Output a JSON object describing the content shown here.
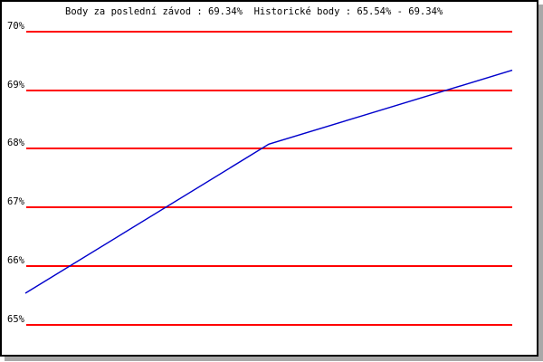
{
  "chart_data": {
    "type": "line",
    "title": "Body za poslední závod : 69.34%  Historické body : 65.54% - 69.34%",
    "last_race_points": "69.34%",
    "historical_range_min": "65.54%",
    "historical_range_max": "69.34%",
    "y_tick_labels": [
      "70%",
      "69%",
      "68%",
      "67%",
      "66%",
      "65%"
    ],
    "y_tick_values": [
      70,
      69,
      68,
      67,
      66,
      65
    ],
    "x_tick_labels": [],
    "num_points": 3,
    "series": [
      {
        "values": [
          65.54,
          68.08,
          69.34
        ],
        "color": "#0000cc"
      }
    ],
    "ylim": [
      64.85,
      70.25
    ],
    "grid": "horizontal",
    "legend_position": "none",
    "xlabel": "",
    "ylabel": ""
  },
  "colors": {
    "gridline": "#ff0000",
    "line": "#0000cc",
    "text": "#000000",
    "frame_border": "#000000",
    "frame_shadow": "#a8a8a8",
    "background": "#ffffff"
  }
}
